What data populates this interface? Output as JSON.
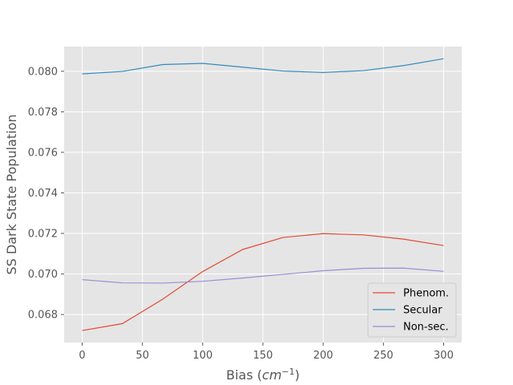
{
  "chart_data": {
    "type": "line",
    "title": "",
    "xlabel": "Bias (",
    "xlabel_math": "cm",
    "xlabel_sup": "−1",
    "xlabel_end": ")",
    "ylabel": "SS Dark State Population",
    "xlim": [
      -15,
      315
    ],
    "ylim": [
      0.06662,
      0.08122
    ],
    "xticks": [
      0,
      50,
      100,
      150,
      200,
      250,
      300
    ],
    "xtick_labels": [
      "0",
      "50",
      "100",
      "150",
      "200",
      "250",
      "300"
    ],
    "yticks": [
      0.068,
      0.07,
      0.072,
      0.074,
      0.076,
      0.078,
      0.08
    ],
    "ytick_labels": [
      "0.068",
      "0.070",
      "0.072",
      "0.074",
      "0.076",
      "0.078",
      "0.080"
    ],
    "grid": true,
    "legend_position": "lower-right",
    "x": [
      0,
      33.3,
      66.7,
      100,
      133.3,
      166.7,
      200,
      233.3,
      266.7,
      300
    ],
    "series": [
      {
        "name": "Phenom.",
        "color": "#E24A33",
        "values": [
          0.06721,
          0.06755,
          0.06875,
          0.07012,
          0.07121,
          0.0718,
          0.07199,
          0.07193,
          0.07172,
          0.0714
        ]
      },
      {
        "name": "Secular",
        "color": "#348ABD",
        "values": [
          0.07987,
          0.07999,
          0.08033,
          0.08039,
          0.0802,
          0.08001,
          0.07994,
          0.08003,
          0.08028,
          0.08062
        ]
      },
      {
        "name": "Non-sec.",
        "color": "#988ED5",
        "values": [
          0.06972,
          0.06956,
          0.06955,
          0.06964,
          0.0698,
          0.06998,
          0.07016,
          0.07028,
          0.07029,
          0.07013
        ]
      }
    ]
  }
}
